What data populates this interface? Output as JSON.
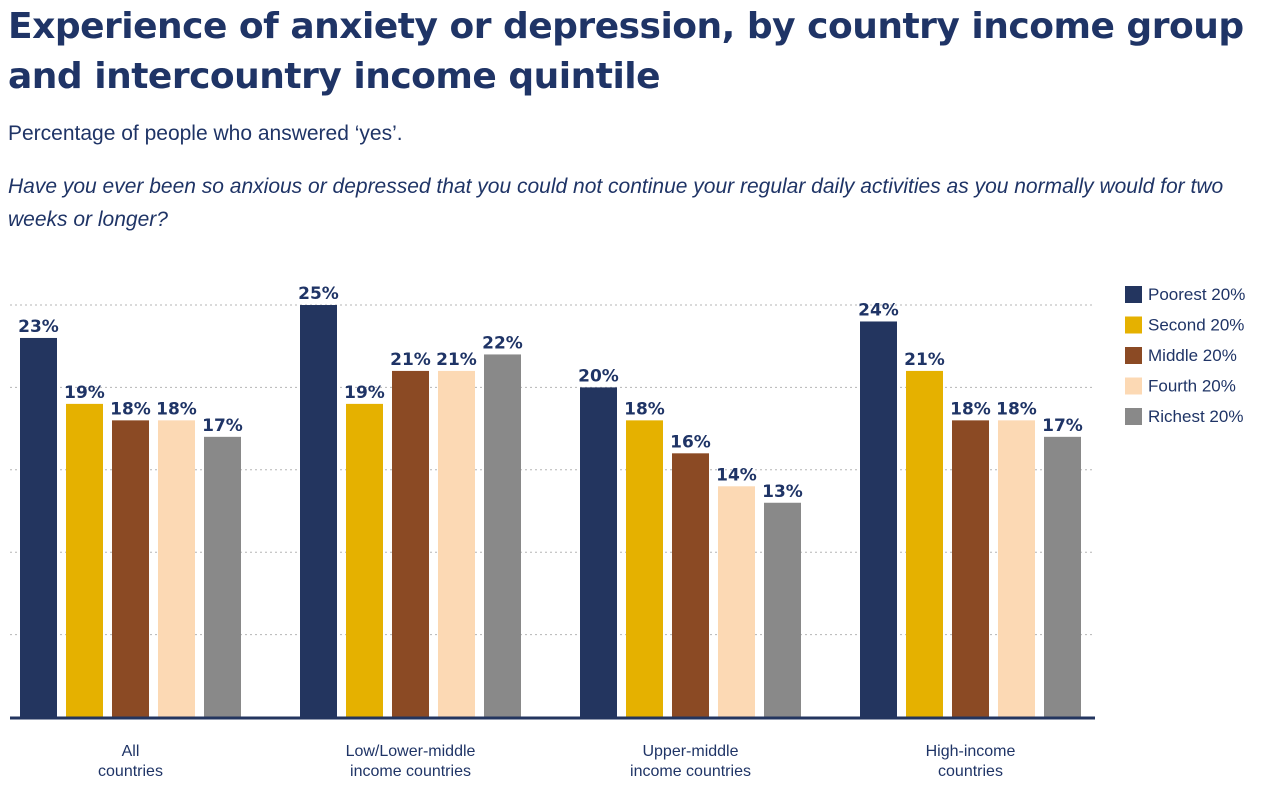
{
  "title": "Experience of anxiety or depression, by country income group and intercountry income quintile",
  "subtitle": "Percentage of people who answered ‘yes’.",
  "question": "Have you ever been so anxious or depressed that you could not continue your regular daily activities as you normally would for two weeks or longer?",
  "chart_data": {
    "type": "bar",
    "categories": [
      [
        "All",
        "countries"
      ],
      [
        "Low/Lower-middle",
        "income countries"
      ],
      [
        "Upper-middle",
        "income countries"
      ],
      [
        "High-income",
        "countries"
      ]
    ],
    "series": [
      {
        "name": "Poorest 20%",
        "color": "#23355f",
        "values": [
          23,
          25,
          20,
          24
        ]
      },
      {
        "name": "Second 20%",
        "color": "#e5b100",
        "values": [
          19,
          19,
          18,
          21
        ]
      },
      {
        "name": "Middle 20%",
        "color": "#8b4a24",
        "values": [
          18,
          21,
          16,
          18
        ]
      },
      {
        "name": "Fourth 20%",
        "color": "#fcd9b4",
        "values": [
          18,
          21,
          14,
          18
        ]
      },
      {
        "name": "Richest 20%",
        "color": "#898989",
        "values": [
          17,
          22,
          13,
          17
        ]
      }
    ],
    "value_suffix": "%",
    "ylim": [
      0,
      25
    ],
    "grid": true,
    "legend": "right"
  }
}
